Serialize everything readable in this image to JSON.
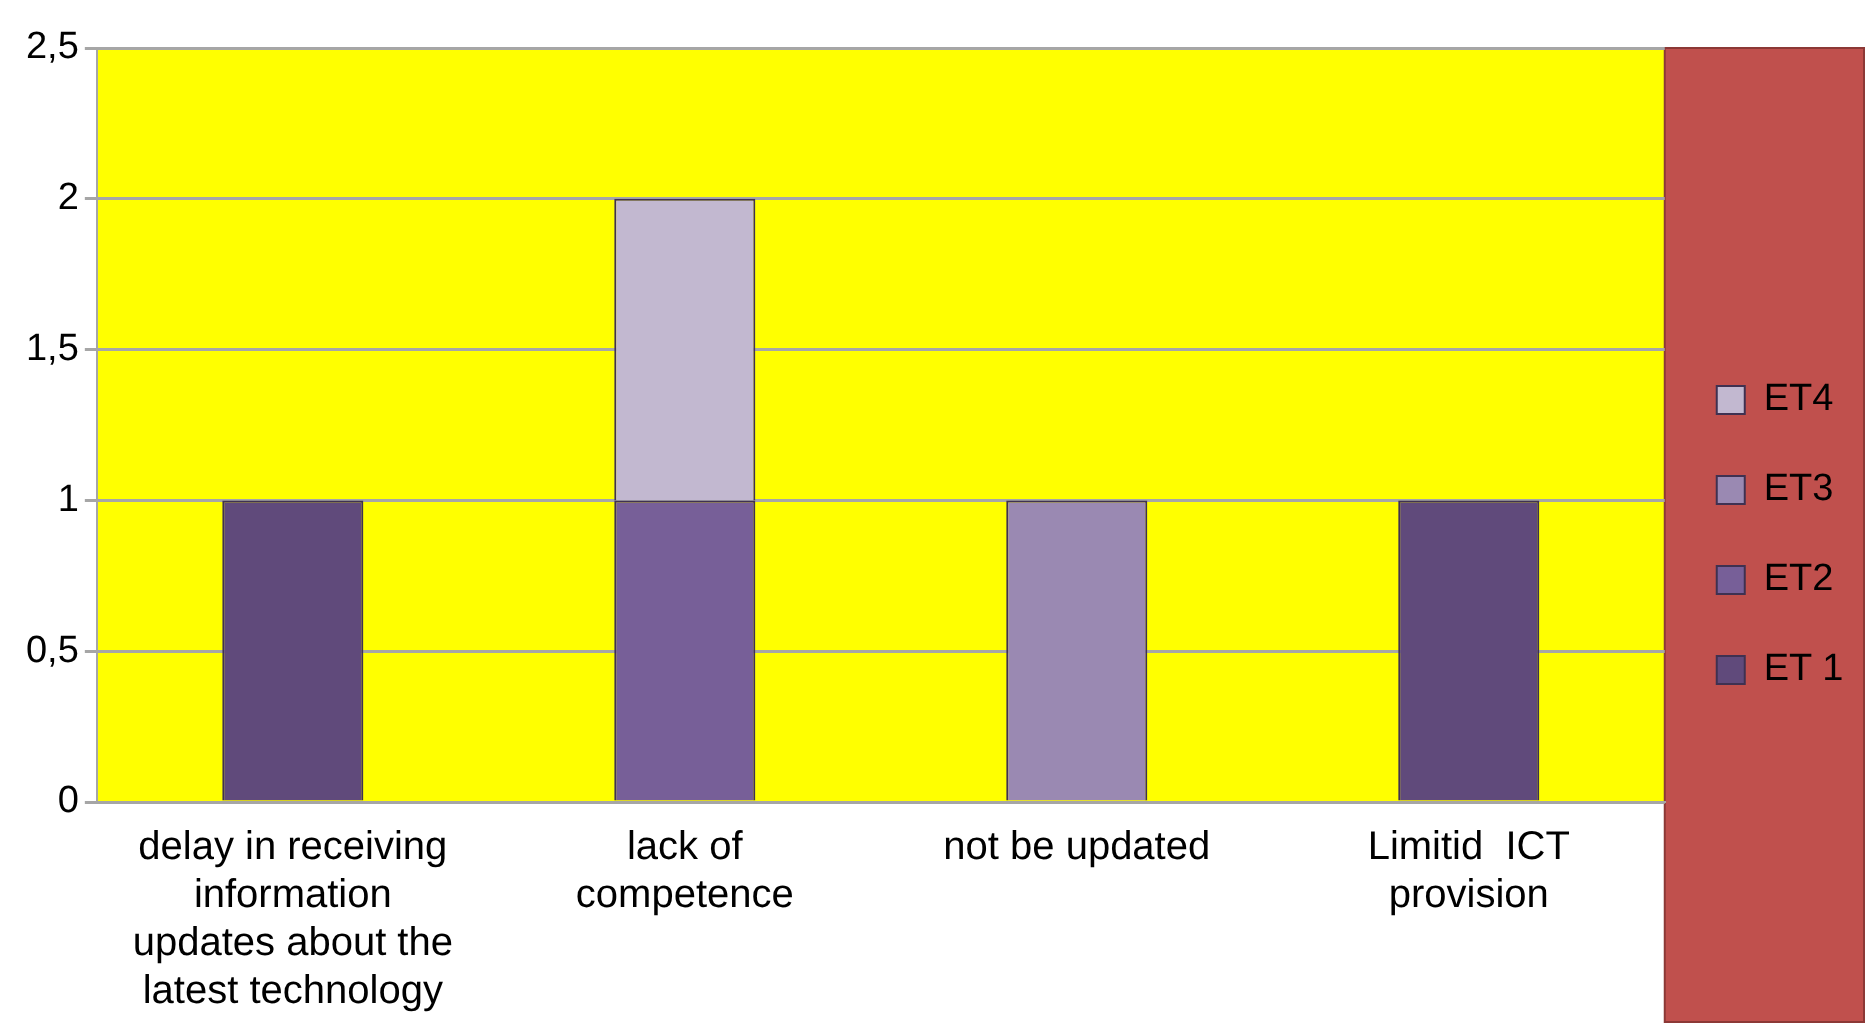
{
  "chart_data": {
    "type": "bar",
    "stacked": true,
    "categories": [
      "delay in receiving information updates about the latest technology",
      "lack of competence",
      "not be updated",
      "Limitid  ICT provision"
    ],
    "series": [
      {
        "name": "ET 1",
        "color": "#604a7b",
        "values": [
          1,
          0,
          0,
          1
        ]
      },
      {
        "name": "ET2",
        "color": "#775f98",
        "values": [
          0,
          1,
          0,
          0
        ]
      },
      {
        "name": "ET3",
        "color": "#9a89b2",
        "values": [
          0,
          0,
          1,
          0
        ]
      },
      {
        "name": "ET4",
        "color": "#c2b8d0",
        "values": [
          0,
          1,
          0,
          0
        ]
      }
    ],
    "ylim": [
      0,
      2.5
    ],
    "yticks": [
      0,
      {
        "value": 0.5,
        "label": "0,5"
      },
      1,
      {
        "value": 1.5,
        "label": "1,5"
      },
      2,
      {
        "value": 2.5,
        "label": "2,5"
      }
    ],
    "grid": "y",
    "legend": "right"
  }
}
